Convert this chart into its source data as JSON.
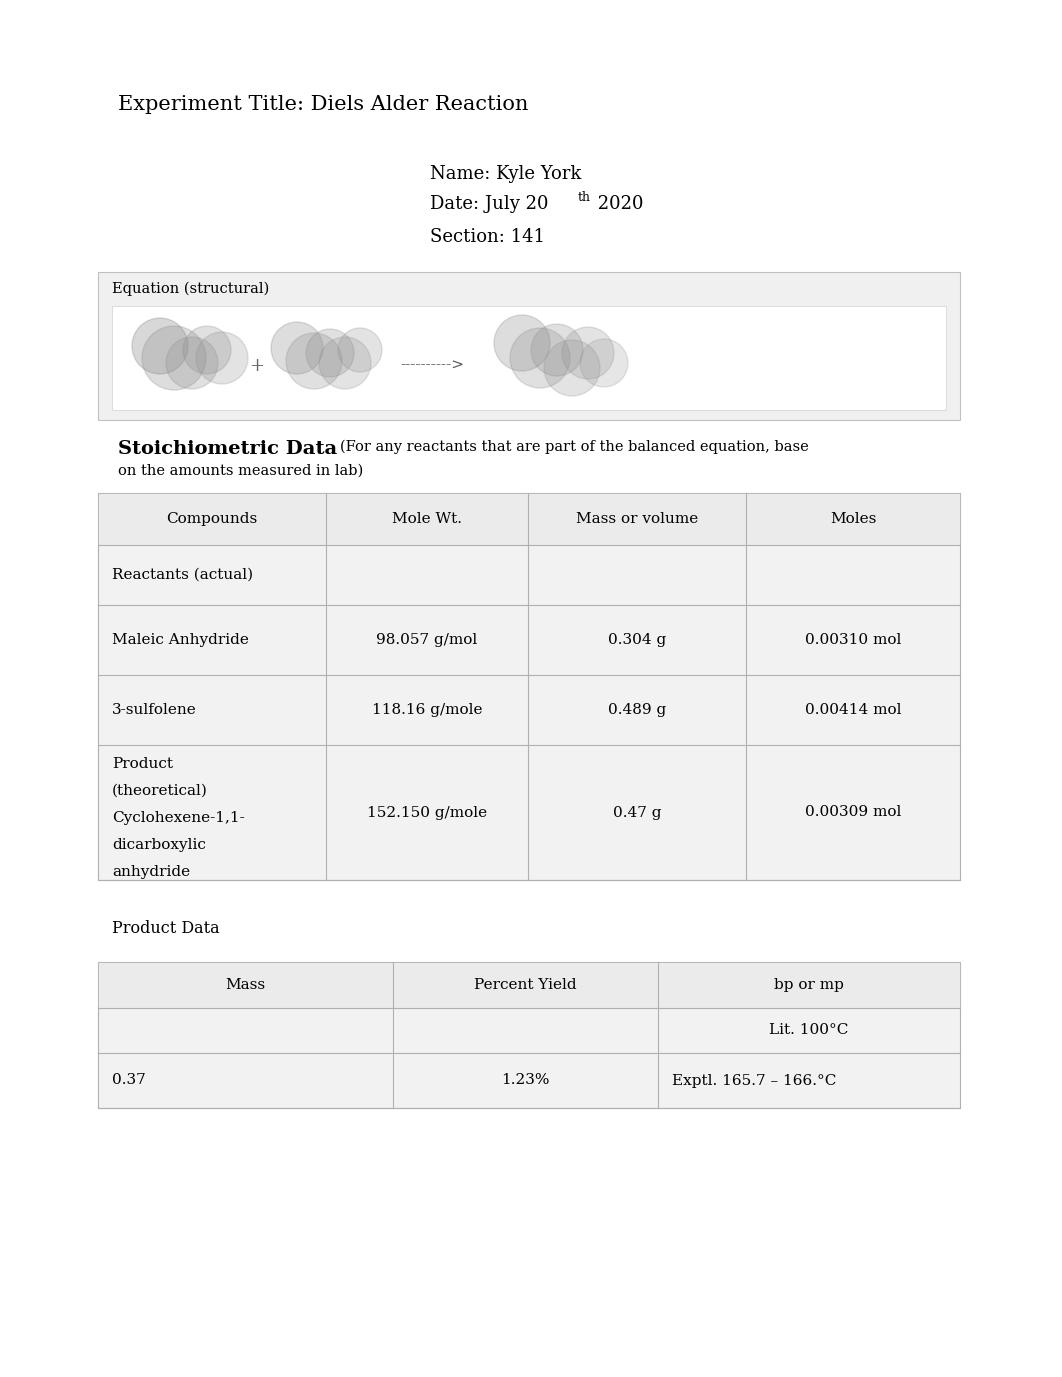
{
  "title": "Experiment Title: Diels Alder Reaction",
  "name_line": "Name: Kyle York",
  "date_line1": "Date: July 20 ",
  "date_super": "th",
  "date_line2": " 2020",
  "section_line": "Section: 141",
  "equation_label": "Equation (structural)",
  "stoich_title": "Stoichiometric Data",
  "stoich_note": "(For any reactants that are part of the balanced equation, base\non the amounts measured in lab)",
  "table1_headers": [
    "Compounds",
    "Mole Wt.",
    "Mass or volume",
    "Moles"
  ],
  "table1_rows": [
    [
      "Reactants (actual)",
      "",
      "",
      ""
    ],
    [
      "Maleic Anhydride",
      "98.057 g/mol",
      "0.304 g",
      "0.00310 mol"
    ],
    [
      "3-sulfolene",
      "118.16 g/mole",
      "0.489 g",
      "0.00414 mol"
    ],
    [
      "Product\n(theoretical)\nCyclohexene-1,1-\ndicarboxylic\nanhydride",
      "152.150 g/mole",
      "0.47 g",
      "0.00309 mol"
    ]
  ],
  "product_data_label": "Product Data",
  "table2_headers": [
    "Mass",
    "Percent Yield",
    "bp or mp"
  ],
  "table2_row1_bp": "Lit. 100°C",
  "table2_row2": [
    "0.37",
    "1.23%",
    "Exptl. 165.7 – 166.°C"
  ],
  "bg_color": "#ffffff",
  "table_bg_light": "#f2f2f2",
  "table_bg_header": "#e8e8e8",
  "table_edge": "#b0b0b0",
  "text_color": "#000000"
}
